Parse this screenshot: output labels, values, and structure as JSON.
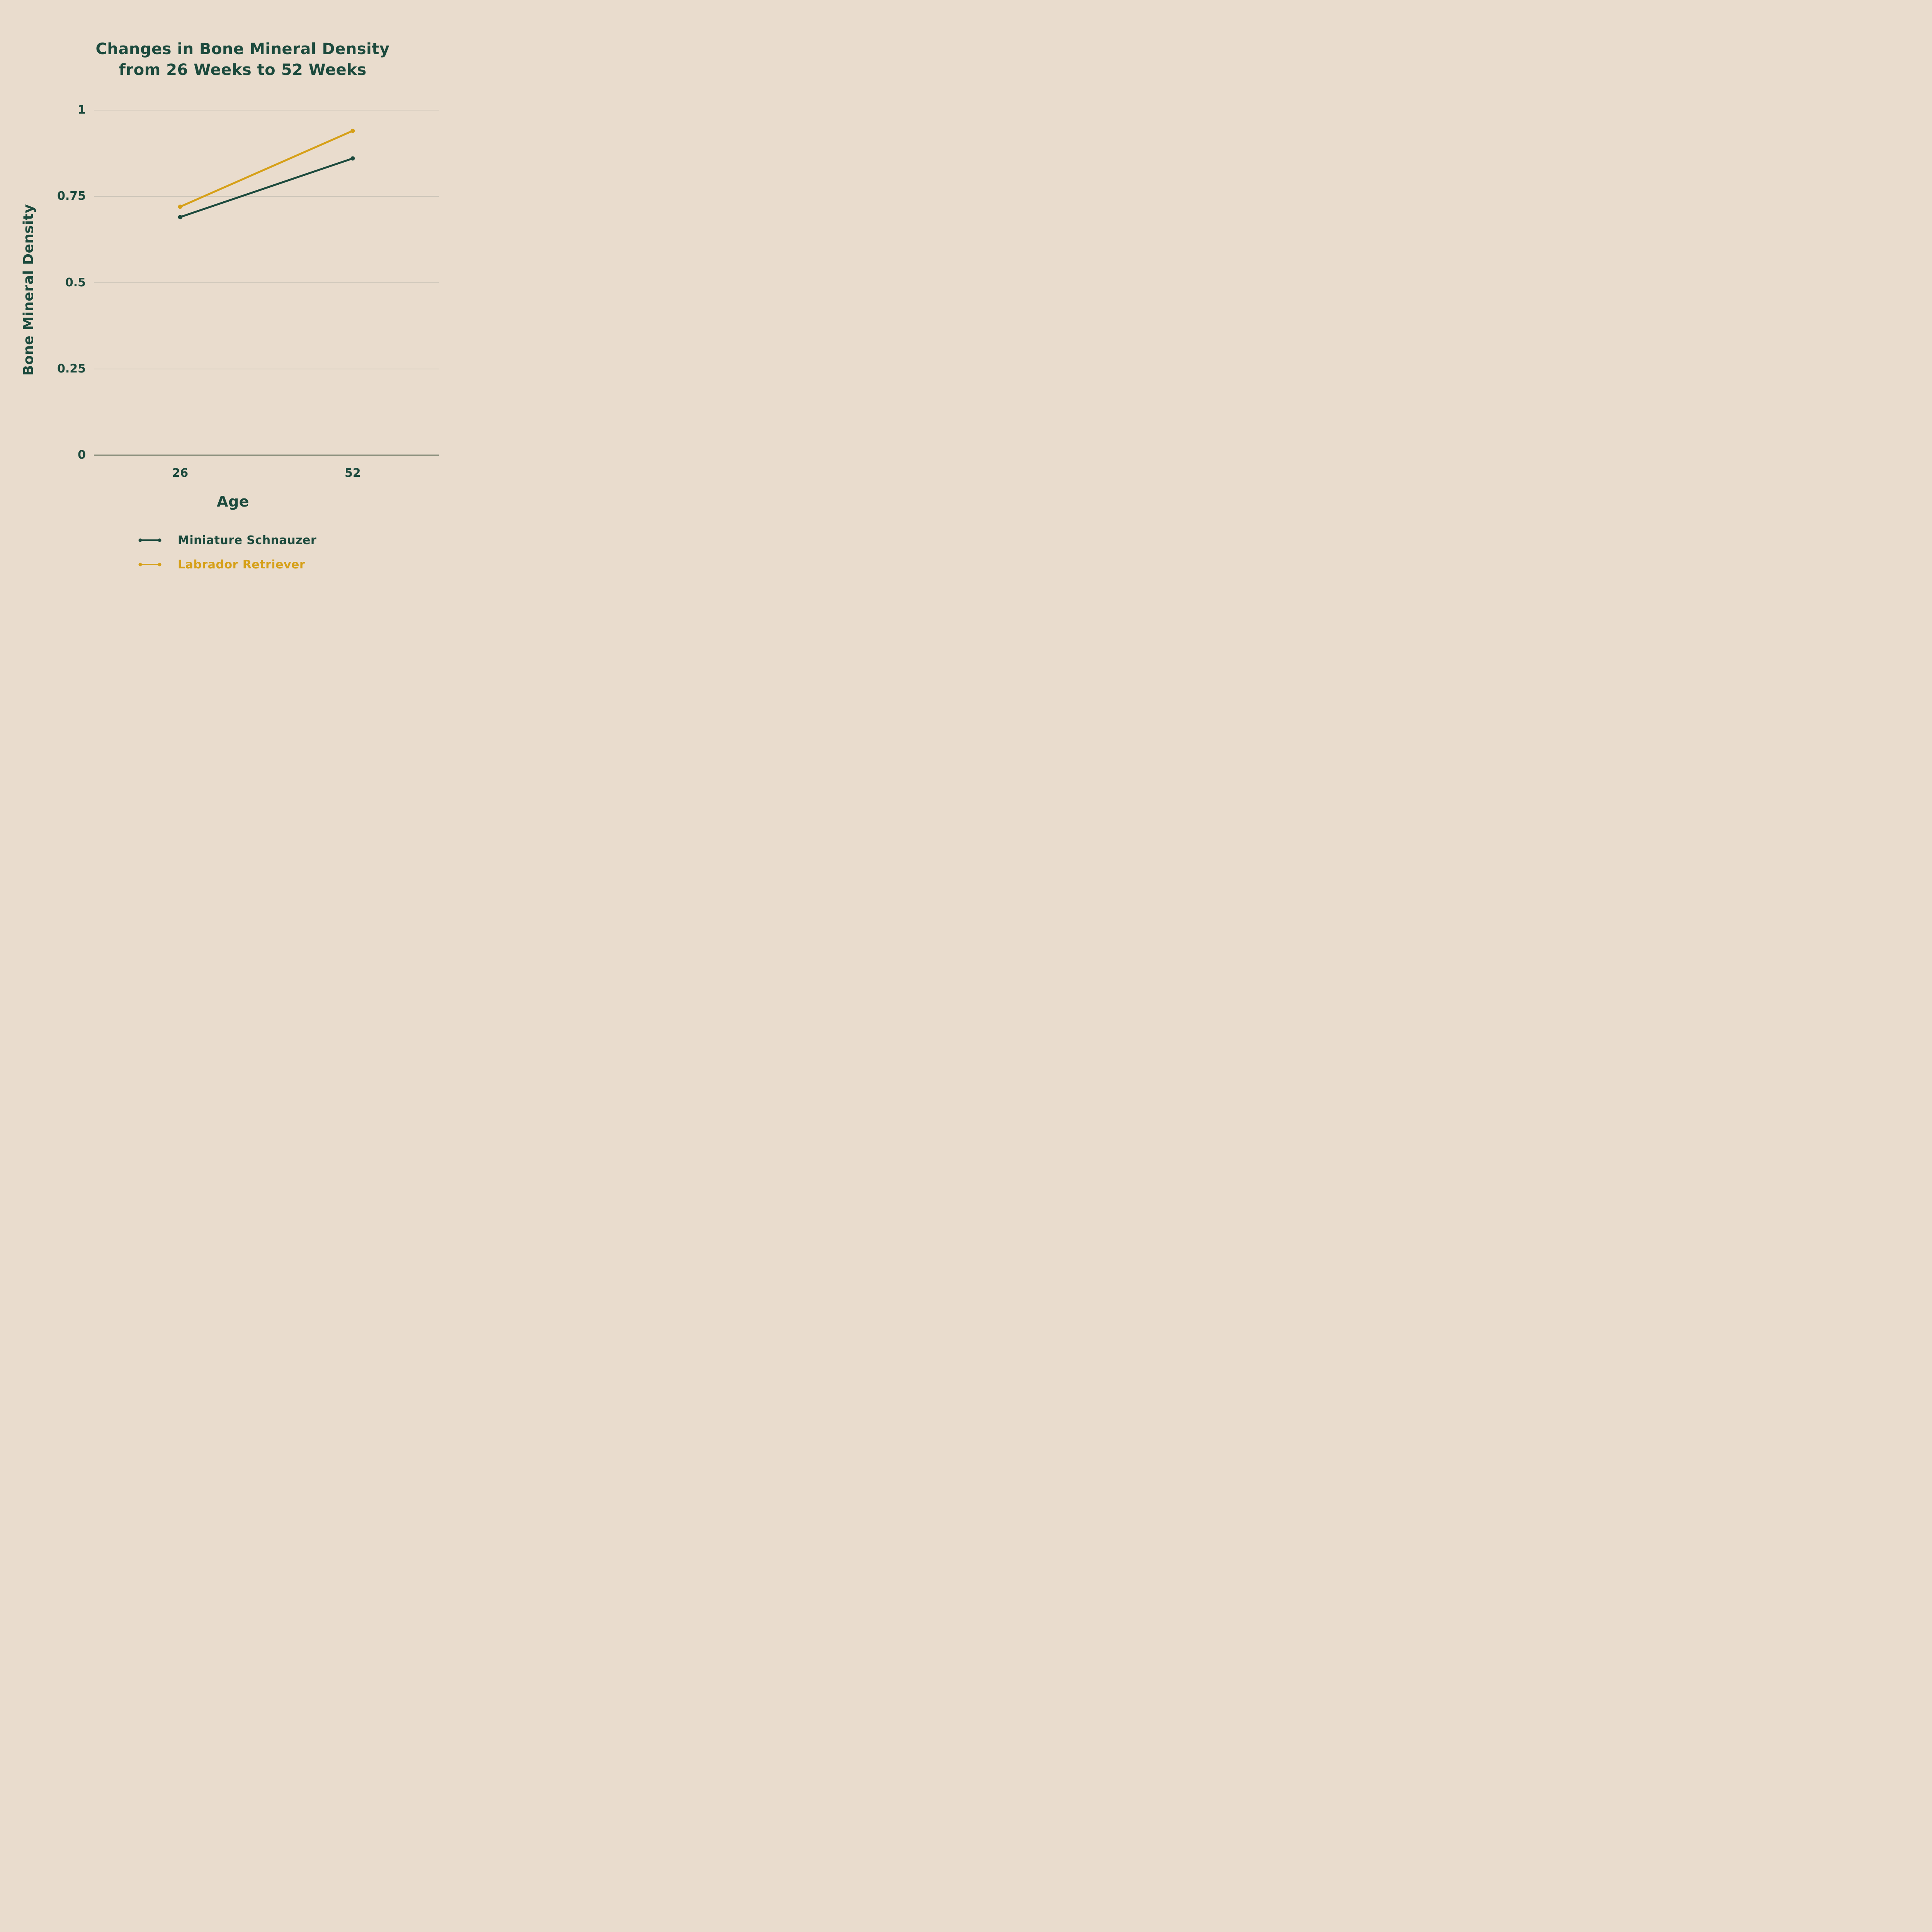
{
  "title": {
    "line1": "Changes in Bone Mineral Density",
    "line2": "from 26 Weeks to 52 Weeks"
  },
  "axes": {
    "y_label": "Bone Mineral Density",
    "x_label": "Age",
    "y_ticks": [
      {
        "value": 1,
        "label": "1"
      },
      {
        "value": 0.75,
        "label": "0.75"
      },
      {
        "value": 0.5,
        "label": "0.5"
      },
      {
        "value": 0.25,
        "label": "0.25"
      },
      {
        "value": 0,
        "label": "0"
      }
    ],
    "x_ticks": [
      "26",
      "52"
    ]
  },
  "legend": [
    {
      "label": "Miniature Schnauzer",
      "color": "#1C4A3D"
    },
    {
      "label": "Labrador Retriever",
      "color": "#D6A018"
    }
  ],
  "colors": {
    "background": "#E9DCCD",
    "text": "#1C4A3D",
    "grid": "#CBC4B8",
    "axis_line": "#7E8672",
    "schnauzer": "#1C4A3D",
    "labrador": "#D6A018"
  },
  "chart_data": {
    "type": "line",
    "x": [
      26,
      52
    ],
    "categories": [
      "26",
      "52"
    ],
    "series": [
      {
        "name": "Miniature Schnauzer",
        "values": [
          0.69,
          0.86
        ],
        "color": "#1C4A3D"
      },
      {
        "name": "Labrador Retriever",
        "values": [
          0.72,
          0.94
        ],
        "color": "#D6A018"
      }
    ],
    "title": "Changes in Bone Mineral Density from 26 Weeks to 52 Weeks",
    "xlabel": "Age",
    "ylabel": "Bone Mineral Density",
    "ylim": [
      0,
      1
    ],
    "yticks": [
      0,
      0.25,
      0.5,
      0.75,
      1
    ],
    "grid": true,
    "marker": "dot-endpoints",
    "legend_position": "bottom-left"
  }
}
